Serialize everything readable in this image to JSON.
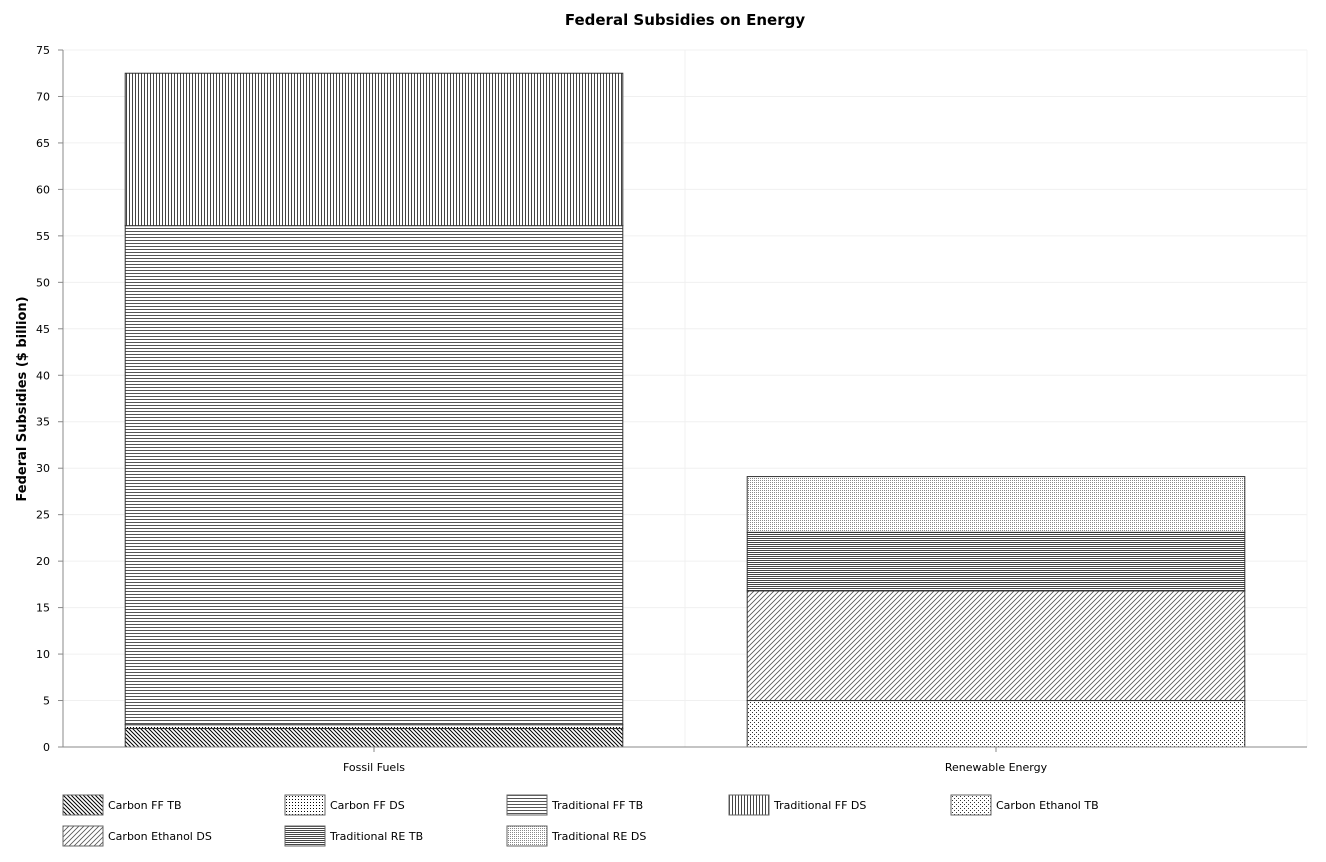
{
  "chart_data": {
    "type": "bar",
    "stacked": true,
    "title": "Federal Subsidies on Energy",
    "xlabel": "",
    "ylabel": "Federal Subsidies ($ billion)",
    "ylim": [
      0,
      75
    ],
    "yticks": [
      0,
      5,
      10,
      15,
      20,
      25,
      30,
      35,
      40,
      45,
      50,
      55,
      60,
      65,
      70,
      75
    ],
    "categories": [
      "Fossil Fuels",
      "Renewable Energy"
    ],
    "grid": true,
    "legend_position": "bottom",
    "series": [
      {
        "name": "Carbon FF TB",
        "pattern": "diag-back",
        "values": [
          2.0,
          0
        ]
      },
      {
        "name": "Carbon FF DS",
        "pattern": "dots",
        "values": [
          0.4,
          0
        ]
      },
      {
        "name": "Traditional FF TB",
        "pattern": "horiz",
        "values": [
          53.7,
          0
        ]
      },
      {
        "name": "Traditional FF DS",
        "pattern": "vert",
        "values": [
          16.4,
          0
        ]
      },
      {
        "name": "Carbon Ethanol TB",
        "pattern": "dots-sparse",
        "values": [
          0,
          5.0
        ]
      },
      {
        "name": "Carbon Ethanol DS",
        "pattern": "diag-fwd",
        "values": [
          0,
          11.8
        ]
      },
      {
        "name": "Traditional RE TB",
        "pattern": "horiz-dense",
        "values": [
          0,
          6.3
        ]
      },
      {
        "name": "Traditional RE DS",
        "pattern": "dots-fine",
        "values": [
          0,
          6.0
        ]
      }
    ]
  }
}
